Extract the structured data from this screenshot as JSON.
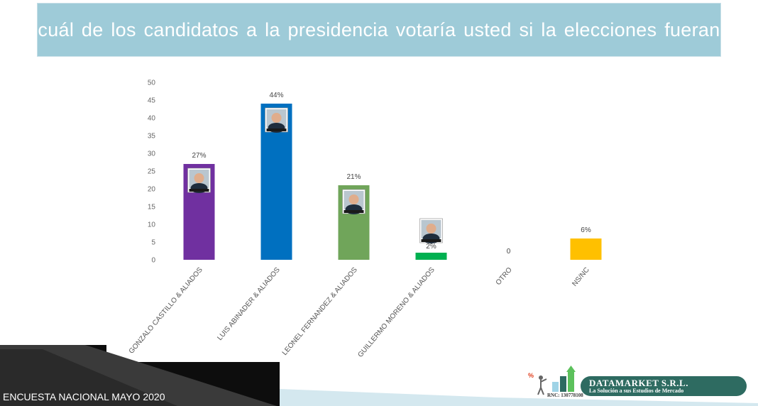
{
  "header": {
    "question": "¿Por cuál de los candidatos a la presidencia votaría usted si la elecciones fueran hoy?"
  },
  "footer": {
    "survey_label": "ENCUESTA NACIONAL  MAYO 2020"
  },
  "brand": {
    "name": "DATAMARKET S.R.L.",
    "tagline": "La Solución a sus Estudios de Mercado",
    "rnc": "RNC: 130778108",
    "logo_icon": "growth-chart-figure-icon",
    "color": "#2e6b61"
  },
  "chart_data": {
    "type": "bar",
    "title": "",
    "xlabel": "",
    "ylabel": "",
    "ylim": [
      0,
      50
    ],
    "yticks": [
      0,
      5,
      10,
      15,
      20,
      25,
      30,
      35,
      40,
      45,
      50
    ],
    "grid": false,
    "legend": "none",
    "categories": [
      "GONZALO CASTILLO & ALIADOS",
      "LUIS ABINADER & ALIADOS",
      "LEONEL FERNANDEZ & ALIADOS",
      "GUILLERMO MORENO & ALIADOS",
      "OTRO",
      "NS/NC"
    ],
    "values": [
      27,
      44,
      21,
      2,
      0,
      6
    ],
    "data_labels": [
      "27%",
      "44%",
      "21%",
      "2%",
      "0",
      "6%"
    ],
    "colors": [
      "#7030a0",
      "#0070c0",
      "#70a55a",
      "#00b050",
      "#cccccc",
      "#ffc000"
    ],
    "photo_icons": [
      "candidate-photo-icon",
      "candidate-photo-icon",
      "candidate-photo-icon",
      "candidate-photo-icon",
      "",
      ""
    ]
  }
}
